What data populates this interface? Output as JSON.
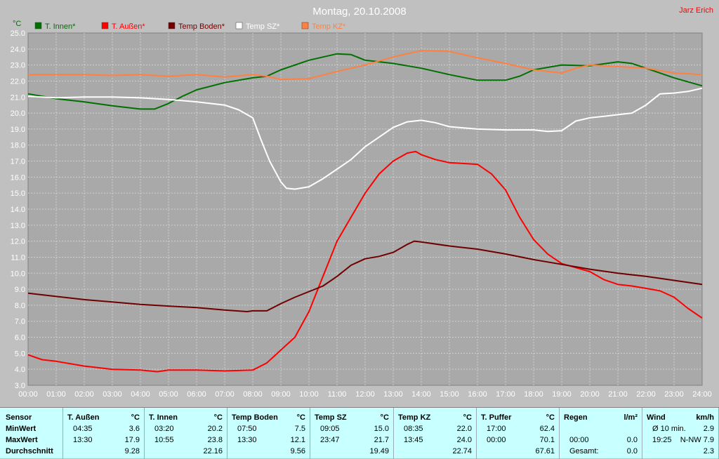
{
  "header": {
    "title": "Montag, 20.10.2008",
    "author": "Jarz Erich"
  },
  "colors": {
    "background": "#c0c0c0",
    "plot_bg": "#a9a9a9",
    "grid": "#d0d0d0",
    "t_innen": "#007000",
    "t_aussen": "#ff0000",
    "temp_boden": "#700000",
    "temp_sz": "#ffffff",
    "temp_kz": "#ff8040",
    "table_bg": "#c8ffff"
  },
  "chart_data": {
    "type": "line",
    "title": "Montag, 20.10.2008",
    "ylabel": "°C",
    "ylim": [
      3.0,
      25.0
    ],
    "xlim": [
      0,
      24
    ],
    "grid": true,
    "legend_position": "top-left",
    "xticks": [
      "00:00",
      "01:00",
      "02:00",
      "03:00",
      "04:00",
      "05:00",
      "06:00",
      "07:00",
      "08:00",
      "09:00",
      "10:00",
      "11:00",
      "12:00",
      "13:00",
      "14:00",
      "15:00",
      "16:00",
      "17:00",
      "18:00",
      "19:00",
      "20:00",
      "21:00",
      "22:00",
      "23:00",
      "24:00"
    ],
    "yticks": [
      "3.0",
      "4.0",
      "5.0",
      "6.0",
      "7.0",
      "8.0",
      "9.0",
      "10.0",
      "11.0",
      "12.0",
      "13.0",
      "14.0",
      "15.0",
      "16.0",
      "17.0",
      "18.0",
      "19.0",
      "20.0",
      "21.0",
      "22.0",
      "23.0",
      "24.0",
      "25.0"
    ],
    "series": [
      {
        "name": "T. Innen*",
        "color": "#007000",
        "points": [
          [
            0,
            21.2
          ],
          [
            1,
            20.9
          ],
          [
            2,
            20.7
          ],
          [
            3,
            20.45
          ],
          [
            4,
            20.25
          ],
          [
            4.5,
            20.25
          ],
          [
            5,
            20.6
          ],
          [
            5.5,
            21.05
          ],
          [
            6,
            21.45
          ],
          [
            7,
            21.9
          ],
          [
            8,
            22.2
          ],
          [
            8.5,
            22.3
          ],
          [
            9,
            22.7
          ],
          [
            10,
            23.3
          ],
          [
            11,
            23.7
          ],
          [
            11.5,
            23.65
          ],
          [
            12,
            23.3
          ],
          [
            13,
            23.1
          ],
          [
            14,
            22.8
          ],
          [
            15,
            22.4
          ],
          [
            16,
            22.05
          ],
          [
            17,
            22.05
          ],
          [
            17.5,
            22.3
          ],
          [
            18,
            22.7
          ],
          [
            19,
            23.0
          ],
          [
            20,
            22.95
          ],
          [
            21,
            23.2
          ],
          [
            21.5,
            23.1
          ],
          [
            22,
            22.8
          ],
          [
            23,
            22.2
          ],
          [
            24,
            21.7
          ]
        ]
      },
      {
        "name": "T. Außen*",
        "color": "#ff0000",
        "points": [
          [
            0,
            4.9
          ],
          [
            0.5,
            4.6
          ],
          [
            1,
            4.5
          ],
          [
            2,
            4.2
          ],
          [
            3,
            4.0
          ],
          [
            4,
            3.95
          ],
          [
            4.6,
            3.85
          ],
          [
            5,
            3.95
          ],
          [
            6,
            3.95
          ],
          [
            7,
            3.9
          ],
          [
            8,
            3.95
          ],
          [
            8.5,
            4.4
          ],
          [
            9,
            5.2
          ],
          [
            9.5,
            6.0
          ],
          [
            10,
            7.6
          ],
          [
            10.5,
            9.8
          ],
          [
            11,
            12.0
          ],
          [
            11.5,
            13.5
          ],
          [
            12,
            15.0
          ],
          [
            12.5,
            16.2
          ],
          [
            13,
            17.0
          ],
          [
            13.5,
            17.5
          ],
          [
            13.8,
            17.6
          ],
          [
            14,
            17.4
          ],
          [
            14.5,
            17.1
          ],
          [
            15,
            16.9
          ],
          [
            16,
            16.8
          ],
          [
            16.5,
            16.2
          ],
          [
            17,
            15.2
          ],
          [
            17.5,
            13.5
          ],
          [
            18,
            12.1
          ],
          [
            18.5,
            11.2
          ],
          [
            19,
            10.6
          ],
          [
            19.5,
            10.35
          ],
          [
            20,
            10.1
          ],
          [
            20.5,
            9.6
          ],
          [
            21,
            9.3
          ],
          [
            21.5,
            9.2
          ],
          [
            22,
            9.05
          ],
          [
            22.5,
            8.9
          ],
          [
            23,
            8.5
          ],
          [
            23.5,
            7.8
          ],
          [
            24,
            7.2
          ]
        ]
      },
      {
        "name": "Temp Boden*",
        "color": "#700000",
        "points": [
          [
            0,
            8.75
          ],
          [
            1,
            8.55
          ],
          [
            2,
            8.35
          ],
          [
            3,
            8.2
          ],
          [
            4,
            8.05
          ],
          [
            5,
            7.95
          ],
          [
            6,
            7.85
          ],
          [
            7,
            7.7
          ],
          [
            7.8,
            7.6
          ],
          [
            8,
            7.65
          ],
          [
            8.5,
            7.65
          ],
          [
            9,
            8.1
          ],
          [
            9.5,
            8.5
          ],
          [
            10,
            8.85
          ],
          [
            10.5,
            9.2
          ],
          [
            11,
            9.8
          ],
          [
            11.5,
            10.5
          ],
          [
            12,
            10.9
          ],
          [
            12.5,
            11.05
          ],
          [
            13,
            11.3
          ],
          [
            13.5,
            11.8
          ],
          [
            13.75,
            12.0
          ],
          [
            14,
            11.95
          ],
          [
            15,
            11.7
          ],
          [
            16,
            11.5
          ],
          [
            17,
            11.2
          ],
          [
            18,
            10.85
          ],
          [
            19,
            10.55
          ],
          [
            20,
            10.25
          ],
          [
            21,
            10.0
          ],
          [
            22,
            9.8
          ],
          [
            23,
            9.55
          ],
          [
            24,
            9.3
          ]
        ]
      },
      {
        "name": "Temp SZ*",
        "color": "#ffffff",
        "points": [
          [
            0,
            21.05
          ],
          [
            1,
            20.95
          ],
          [
            2,
            21.0
          ],
          [
            3,
            21.0
          ],
          [
            4,
            20.95
          ],
          [
            5,
            20.85
          ],
          [
            6,
            20.7
          ],
          [
            7,
            20.5
          ],
          [
            7.5,
            20.2
          ],
          [
            8,
            19.7
          ],
          [
            8.3,
            18.3
          ],
          [
            8.6,
            17.0
          ],
          [
            9,
            15.7
          ],
          [
            9.2,
            15.3
          ],
          [
            9.5,
            15.25
          ],
          [
            10,
            15.4
          ],
          [
            10.5,
            15.9
          ],
          [
            11,
            16.5
          ],
          [
            11.5,
            17.1
          ],
          [
            12,
            17.9
          ],
          [
            12.5,
            18.5
          ],
          [
            13,
            19.1
          ],
          [
            13.5,
            19.45
          ],
          [
            14,
            19.55
          ],
          [
            14.5,
            19.4
          ],
          [
            15,
            19.15
          ],
          [
            16,
            19.0
          ],
          [
            17,
            18.95
          ],
          [
            18,
            18.95
          ],
          [
            18.5,
            18.85
          ],
          [
            19,
            18.9
          ],
          [
            19.5,
            19.5
          ],
          [
            20,
            19.7
          ],
          [
            20.5,
            19.8
          ],
          [
            21,
            19.9
          ],
          [
            21.5,
            20.0
          ],
          [
            22,
            20.5
          ],
          [
            22.5,
            21.2
          ],
          [
            23,
            21.25
          ],
          [
            23.5,
            21.35
          ],
          [
            24,
            21.55
          ]
        ]
      },
      {
        "name": "Temp KZ*",
        "color": "#ff8040",
        "points": [
          [
            0,
            22.4
          ],
          [
            1,
            22.4
          ],
          [
            2,
            22.4
          ],
          [
            3,
            22.35
          ],
          [
            4,
            22.4
          ],
          [
            5,
            22.3
          ],
          [
            6,
            22.4
          ],
          [
            7,
            22.25
          ],
          [
            8,
            22.4
          ],
          [
            8.5,
            22.3
          ],
          [
            9,
            22.1
          ],
          [
            10,
            22.15
          ],
          [
            11,
            22.6
          ],
          [
            12,
            23.0
          ],
          [
            13,
            23.5
          ],
          [
            14,
            23.9
          ],
          [
            15,
            23.85
          ],
          [
            16,
            23.45
          ],
          [
            17,
            23.1
          ],
          [
            18,
            22.7
          ],
          [
            19,
            22.5
          ],
          [
            19.5,
            22.8
          ],
          [
            20,
            23.0
          ],
          [
            21,
            22.9
          ],
          [
            22,
            22.8
          ],
          [
            23,
            22.5
          ],
          [
            24,
            22.4
          ]
        ]
      }
    ]
  },
  "table": {
    "row_labels": [
      "Sensor",
      "MinWert",
      "MaxWert",
      "Durchschnitt"
    ],
    "columns": [
      {
        "name": "T. Außen",
        "unit": "°C",
        "min_time": "04:35",
        "min": "3.6",
        "max_time": "13:30",
        "max": "17.9",
        "avg": "9.28"
      },
      {
        "name": "T. Innen",
        "unit": "°C",
        "min_time": "03:20",
        "min": "20.2",
        "max_time": "10:55",
        "max": "23.8",
        "avg": "22.16"
      },
      {
        "name": "Temp Boden",
        "unit": "°C",
        "min_time": "07:50",
        "min": "7.5",
        "max_time": "13:30",
        "max": "12.1",
        "avg": "9.56"
      },
      {
        "name": "Temp SZ",
        "unit": "°C",
        "min_time": "09:05",
        "min": "15.0",
        "max_time": "23:47",
        "max": "21.7",
        "avg": "19.49"
      },
      {
        "name": "Temp KZ",
        "unit": "°C",
        "min_time": "08:35",
        "min": "22.0",
        "max_time": "13:45",
        "max": "24.0",
        "avg": "22.74"
      },
      {
        "name": "T. Puffer",
        "unit": "°C",
        "min_time": "17:00",
        "min": "62.4",
        "max_time": "00:00",
        "max": "70.1",
        "avg": "67.61"
      },
      {
        "name": "Regen",
        "unit": "l/m²",
        "min_time": "",
        "min": "",
        "max_time": "00:00",
        "max": "0.0",
        "avg_label": "Gesamt:",
        "avg": "0.0"
      },
      {
        "name": "Wind",
        "unit": "km/h",
        "min_time": "Ø 10 min.",
        "min": "2.9",
        "max_time": "19:25",
        "max": "N-NW 7.9",
        "avg": "2.3"
      }
    ]
  }
}
